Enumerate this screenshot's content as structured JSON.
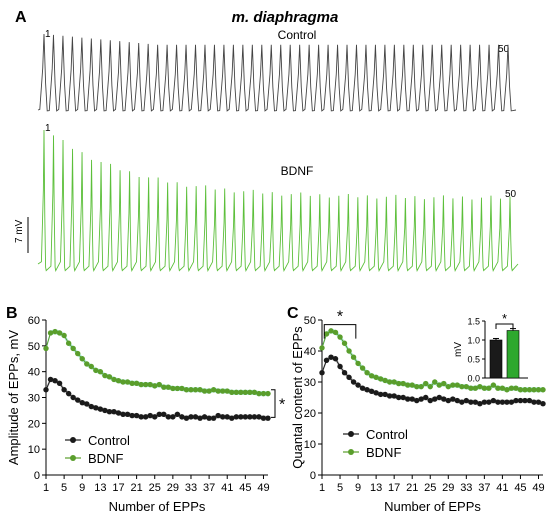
{
  "figure": {
    "title": "m. diaphragma",
    "panels": {
      "a": "A",
      "b": "B",
      "c": "C"
    },
    "traces": {
      "control": {
        "label": "Control",
        "first": "1",
        "last": "50",
        "color": "#444444"
      },
      "bdnf": {
        "label": "BDNF",
        "first": "1",
        "last": "50",
        "color": "#5cbf3a"
      }
    },
    "scale_bar": "7 mV",
    "significance": "*"
  },
  "colors": {
    "control": "#1a1a1a",
    "bdnf": "#5a9e2c",
    "bdnf_band": "#a8ece0",
    "control_band": "#cccccc",
    "inset_bdnf": "#2ea82e"
  },
  "chart_data": [
    {
      "type": "line",
      "panel": "B",
      "xlabel": "Number of EPPs",
      "ylabel": "Amplitude of EPPs, mV",
      "xlim": [
        1,
        50
      ],
      "ylim": [
        0,
        60
      ],
      "xticks": [
        1,
        5,
        9,
        13,
        17,
        21,
        25,
        29,
        33,
        37,
        41,
        45,
        49
      ],
      "yticks": [
        0,
        10,
        20,
        30,
        40,
        50,
        60
      ],
      "legend_position": "lower-left",
      "significance": "*",
      "series": [
        {
          "name": "Control",
          "values": [
            33,
            37,
            36.5,
            35.5,
            33,
            31.5,
            30,
            29,
            28,
            27.5,
            26.5,
            26,
            25.5,
            25,
            24.5,
            24.5,
            24,
            23.5,
            23.5,
            23,
            23,
            22.5,
            22.5,
            23,
            22.5,
            23.5,
            23.5,
            22.5,
            22.5,
            23.5,
            22.5,
            22,
            22.5,
            22.5,
            22,
            22.5,
            22,
            22,
            23,
            22.5,
            22.5,
            22,
            22.5,
            22.5,
            22.5,
            22.5,
            22.5,
            22.5,
            22,
            22
          ]
        },
        {
          "name": "BDNF",
          "values": [
            49,
            55,
            55.5,
            55,
            54,
            51,
            49,
            47,
            45,
            43,
            42,
            40.5,
            40,
            38.5,
            38,
            37,
            36.5,
            36,
            36,
            35.5,
            35.5,
            35,
            35,
            35,
            34.5,
            35,
            34,
            34,
            33.5,
            33.5,
            33.5,
            33,
            33,
            33,
            33,
            32.5,
            32.5,
            33,
            32.5,
            32.5,
            32.5,
            32,
            32,
            32,
            32,
            32,
            32,
            31.5,
            31.5,
            31.5
          ]
        }
      ]
    },
    {
      "type": "line",
      "panel": "C",
      "xlabel": "Number of EPPs",
      "ylabel": "Quantal content of EPPs",
      "xlim": [
        1,
        50
      ],
      "ylim": [
        0,
        50
      ],
      "xticks": [
        1,
        5,
        9,
        13,
        17,
        21,
        25,
        29,
        33,
        37,
        41,
        45,
        49
      ],
      "yticks": [
        0,
        10,
        20,
        30,
        40,
        50
      ],
      "legend_position": "lower-left",
      "significance": "*",
      "series": [
        {
          "name": "Control",
          "values": [
            33,
            37,
            38,
            37.5,
            35,
            33,
            31.5,
            30,
            29,
            28,
            27.5,
            27,
            26.5,
            26,
            26,
            25.5,
            25.5,
            25,
            25,
            24.5,
            24.5,
            24,
            24.5,
            25,
            24,
            24.5,
            25,
            24.5,
            24,
            24.5,
            24,
            23.5,
            24,
            23.5,
            23.5,
            23,
            23.5,
            23.5,
            24,
            23.5,
            23.5,
            23.5,
            23.5,
            24,
            24,
            24,
            24,
            23.5,
            23.5,
            23
          ]
        },
        {
          "name": "BDNF",
          "values": [
            41,
            45.5,
            46.5,
            46,
            44.5,
            42.5,
            40,
            38,
            36,
            34.5,
            33,
            32,
            31.5,
            31,
            30.5,
            30,
            30,
            29.5,
            29.5,
            29,
            29,
            28.5,
            28.5,
            29.5,
            28.5,
            30,
            29,
            29.5,
            28.5,
            29,
            29,
            28.5,
            28.5,
            28,
            28,
            28.5,
            28,
            28,
            29,
            28,
            28,
            27.5,
            28,
            28,
            27.5,
            27.5,
            27.5,
            27.5,
            27.5,
            27.5
          ]
        }
      ]
    },
    {
      "type": "bar",
      "panel": "C-inset",
      "ylabel": "mV",
      "categories": [
        "Control",
        "BDNF"
      ],
      "values": [
        1.0,
        1.25
      ],
      "errors": [
        0.04,
        0.05
      ],
      "ylim": [
        0,
        1.5
      ],
      "yticks": [
        "0.0",
        "0.5",
        "1.0",
        "1.5"
      ],
      "significance": "*"
    }
  ]
}
